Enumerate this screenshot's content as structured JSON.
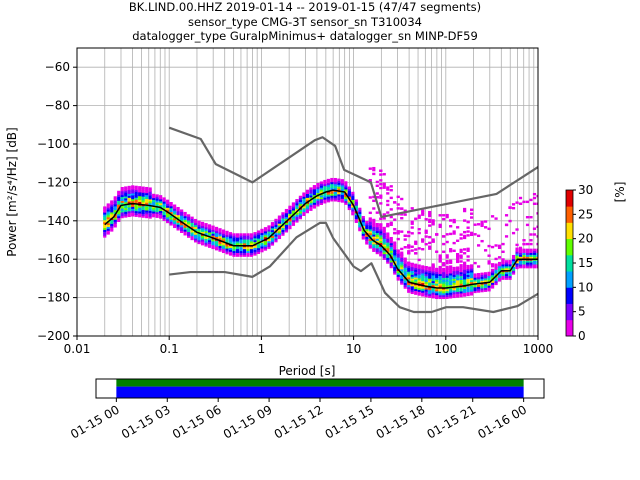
{
  "chart_data": [
    {
      "type": "heatmap",
      "subtype": "probabilistic-power-spectral-density",
      "title_lines": [
        "BK.LIND.00.HHZ   2019-01-14 -- 2019-01-15  (47/47 segments)",
        "sensor_type CMG-3T sensor_sn T310034",
        "datalogger_type GuralpMinimus+ datalogger_sn MINP-DF59"
      ],
      "xlabel": "Period [s]",
      "ylabel": "Power [m²/s⁴/Hz] [dB]",
      "x_scale": "log",
      "xlim": [
        0.01,
        1000
      ],
      "ylim": [
        -200,
        -50
      ],
      "x_ticks": [
        {
          "value": 0.01,
          "label": "0.01"
        },
        {
          "value": 0.1,
          "label": "0.1"
        },
        {
          "value": 1,
          "label": "1"
        },
        {
          "value": 10,
          "label": "10"
        },
        {
          "value": 100,
          "label": "100"
        },
        {
          "value": 1000,
          "label": "1000"
        }
      ],
      "y_ticks": [
        {
          "value": -60,
          "label": "−60"
        },
        {
          "value": -80,
          "label": "−80"
        },
        {
          "value": -100,
          "label": "−100"
        },
        {
          "value": -120,
          "label": "−120"
        },
        {
          "value": -140,
          "label": "−140"
        },
        {
          "value": -160,
          "label": "−160"
        },
        {
          "value": -180,
          "label": "−180"
        },
        {
          "value": -200,
          "label": "−200"
        }
      ],
      "grid": true,
      "colorbar": {
        "label": "[%]",
        "range": [
          0,
          30
        ],
        "ticks": [
          {
            "value": 0,
            "label": "0"
          },
          {
            "value": 5,
            "label": "5"
          },
          {
            "value": 10,
            "label": "10"
          },
          {
            "value": 15,
            "label": "15"
          },
          {
            "value": 20,
            "label": "20"
          },
          {
            "value": 25,
            "label": "25"
          },
          {
            "value": 30,
            "label": "30"
          }
        ],
        "colors": [
          "#ffffff",
          "#e800e8",
          "#7a00ff",
          "#0000ff",
          "#00a0ff",
          "#00e0a0",
          "#60ff00",
          "#ffe000",
          "#ff6000",
          "#e00000"
        ]
      },
      "series": [
        {
          "name": "",
          "role": "new-high-noise-model",
          "color": "#666666",
          "x": [
            0.1,
            0.22,
            0.32,
            0.8,
            3.8,
            4.6,
            6.3,
            7.9,
            15.4,
            20,
            354.8,
            1000
          ],
          "y": [
            -91.5,
            -97.4,
            -110.5,
            -120,
            -98,
            -96.5,
            -101,
            -113.5,
            -120,
            -138,
            -126,
            -112
          ]
        },
        {
          "name": "",
          "role": "new-low-noise-model",
          "color": "#666666",
          "x": [
            0.1,
            0.17,
            0.4,
            0.8,
            1.24,
            2.4,
            4.3,
            5,
            6,
            10,
            12,
            15.6,
            21.9,
            31.6,
            45,
            70,
            101,
            154,
            328,
            600,
            1000
          ],
          "y": [
            -168,
            -166.7,
            -166.7,
            -169.2,
            -163.7,
            -148.6,
            -141.1,
            -141.1,
            -149,
            -163.8,
            -166.2,
            -162.1,
            -177.5,
            -185,
            -187.5,
            -187.5,
            -185,
            -185,
            -187.5,
            -184.4,
            -178
          ]
        },
        {
          "name": "",
          "role": "mode",
          "color": "#000000",
          "x": [
            0.02,
            0.025,
            0.03,
            0.04,
            0.06,
            0.08,
            0.1,
            0.15,
            0.2,
            0.3,
            0.5,
            0.8,
            1.2,
            2,
            3,
            4,
            5,
            6,
            8,
            10,
            13,
            16,
            20,
            25,
            30,
            40,
            60,
            80,
            100,
            150,
            200,
            300,
            400,
            500,
            600,
            1000
          ],
          "y": [
            -142,
            -138,
            -132,
            -131,
            -132,
            -133,
            -136,
            -142,
            -146,
            -149,
            -153,
            -153,
            -149,
            -139,
            -131,
            -127,
            -125,
            -124,
            -125,
            -132,
            -145,
            -150,
            -153,
            -158,
            -165,
            -172,
            -174,
            -175,
            -175,
            -174,
            -173,
            -172,
            -166,
            -166,
            -160,
            -160
          ]
        }
      ],
      "time_coverage": {
        "ticks": [
          {
            "value": 0,
            "label": "01-15 00"
          },
          {
            "value": 3,
            "label": "01-15 03"
          },
          {
            "value": 6,
            "label": "01-15 06"
          },
          {
            "value": 9,
            "label": "01-15 09"
          },
          {
            "value": 12,
            "label": "01-15 12"
          },
          {
            "value": 15,
            "label": "01-15 15"
          },
          {
            "value": 18,
            "label": "01-15 18"
          },
          {
            "value": 21,
            "label": "01-15 21"
          },
          {
            "value": 24,
            "label": "01-16 00"
          }
        ],
        "range_hours": [
          -1.2,
          25.2
        ],
        "data_hours": [
          0,
          24
        ],
        "processed_hours": [
          0,
          24
        ],
        "data_color": "#0000ff",
        "processed_color": "#008000"
      }
    }
  ]
}
